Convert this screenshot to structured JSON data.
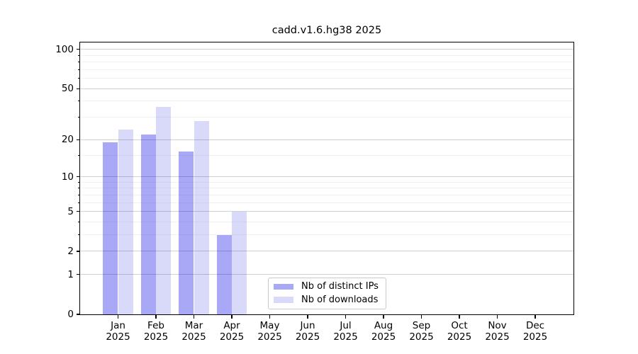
{
  "chart_data": {
    "type": "bar",
    "title": "cadd.v1.6.hg38 2025",
    "categories": [
      "Jan",
      "Feb",
      "Mar",
      "Apr",
      "May",
      "Jun",
      "Jul",
      "Aug",
      "Sep",
      "Oct",
      "Nov",
      "Dec"
    ],
    "x_tick_second_line": "2025",
    "series": [
      {
        "name": "Nb of distinct IPs",
        "color": "#a8a8f7",
        "values": [
          19,
          22,
          16,
          3,
          null,
          null,
          null,
          null,
          null,
          null,
          null,
          null
        ]
      },
      {
        "name": "Nb of downloads",
        "color": "#d9d9fa",
        "values": [
          24,
          36,
          28,
          5,
          null,
          null,
          null,
          null,
          null,
          null,
          null,
          null
        ]
      }
    ],
    "xlabel": "",
    "ylabel": "",
    "yscale": "symlog-like: position proportional to log10(1+v)",
    "y_major_ticks": [
      0,
      1,
      2,
      5,
      10,
      20,
      50,
      100
    ],
    "y_minor_ticks": [
      3,
      4,
      6,
      7,
      8,
      9,
      15,
      30,
      40,
      60,
      70,
      80,
      90
    ],
    "ylim": [
      0,
      113
    ],
    "grid": "horizontal major and minor gridlines",
    "legend_position": "lower center"
  }
}
